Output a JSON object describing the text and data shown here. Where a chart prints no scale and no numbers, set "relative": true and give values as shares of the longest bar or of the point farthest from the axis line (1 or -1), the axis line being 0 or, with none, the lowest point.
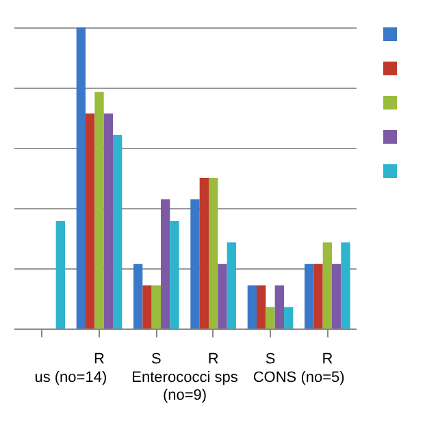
{
  "chart_data": {
    "type": "bar",
    "relative": true,
    "grid": "y",
    "categories": [
      null,
      "R",
      "S",
      "R",
      "S",
      "R"
    ],
    "annotations": [
      "us (no=14)",
      "Enterococci sps\n(no=9)",
      "CONS (no=5)"
    ],
    "series": [
      {
        "color": "#3a78c9",
        "values": [
          null,
          1,
          0.214,
          0.429,
          0.143,
          0.214
        ]
      },
      {
        "color": "#c0392b",
        "values": [
          null,
          0.714,
          0.143,
          0.5,
          0.143,
          0.214
        ]
      },
      {
        "color": "#9bbb3c",
        "values": [
          null,
          0.786,
          0.143,
          0.5,
          0.071,
          0.286
        ]
      },
      {
        "color": "#7d5aa6",
        "values": [
          null,
          0.714,
          0.429,
          0.214,
          0.143,
          0.214
        ]
      },
      {
        "color": "#2eb4cf",
        "values": [
          0.357,
          0.643,
          0.357,
          0.286,
          0.071,
          0.286
        ]
      }
    ]
  }
}
